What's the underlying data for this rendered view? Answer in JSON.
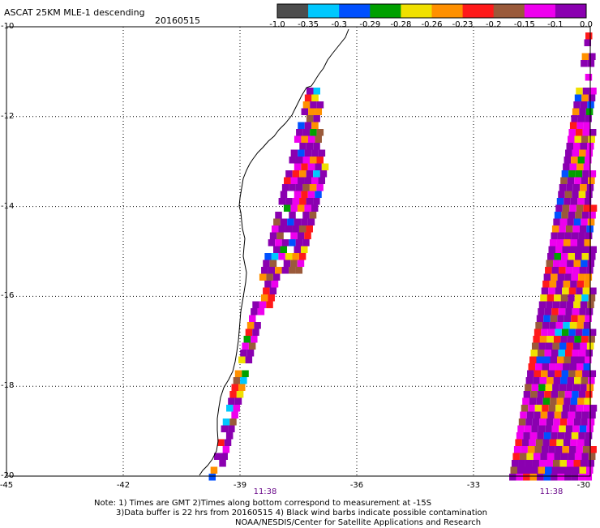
{
  "header": {
    "title": "ASCAT 25KM MLE-1 descending",
    "date": "20160515"
  },
  "colorbar": {
    "colors": [
      "#4d4d4d",
      "#00c8ff",
      "#0050ff",
      "#00a000",
      "#f0e000",
      "#ff9000",
      "#ff1a1a",
      "#9a5a3a",
      "#ee00ee",
      "#8a00b0"
    ],
    "labels": [
      "-1.0",
      "-0.35",
      "-0.3",
      "-0.29",
      "-0.28",
      "-0.26",
      "-0.23",
      "-0.2",
      "-0.15",
      "-0.1",
      "0.0"
    ]
  },
  "map": {
    "lon_range": [
      -45,
      -30
    ],
    "lat_range": [
      -20,
      -10
    ],
    "lon_ticks": [
      "-45",
      "-42",
      "-39",
      "-36",
      "-33",
      "-30"
    ],
    "lat_ticks": [
      "-10",
      "-12",
      "-14",
      "-16",
      "-18",
      "-20"
    ],
    "pass_times": [
      "11:38",
      "11:38"
    ]
  },
  "notes": {
    "line1": "Note: 1) Times are GMT 2)Times along bottom correspond to measurement at -15S",
    "line2": "3)Data buffer is 22 hrs from 20160515 4) Black wind barbs indicate possible contamination",
    "line3": "NOAA/NESDIS/Center for Satellite Applications and Research"
  }
}
